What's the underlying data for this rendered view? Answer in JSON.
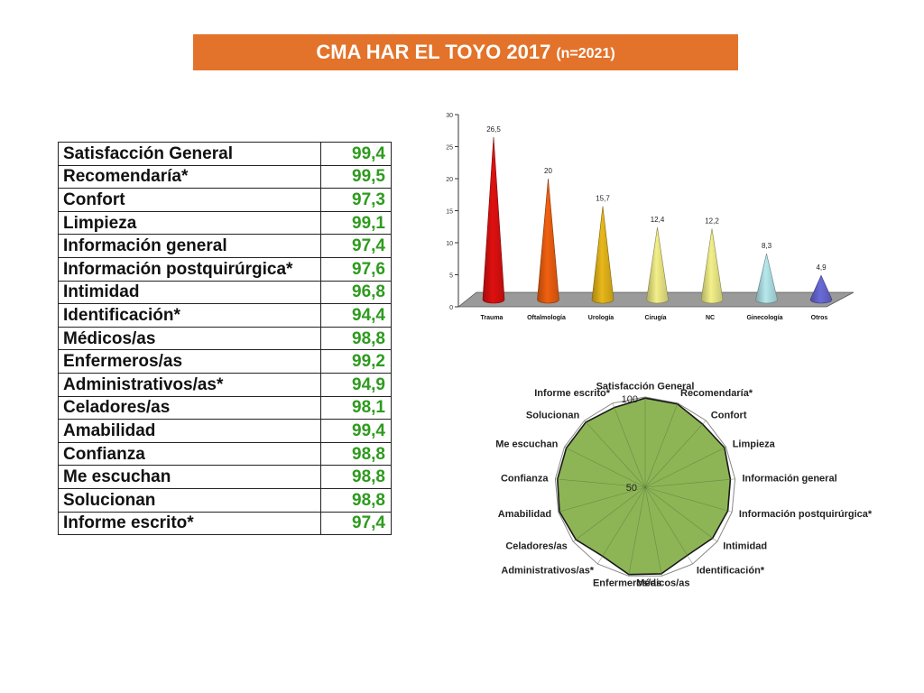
{
  "header": {
    "title": "CMA HAR EL TOYO 2017",
    "subtitle": "(n=2021)"
  },
  "colors": {
    "banner": "#e3732a",
    "value_text": "#2e9b1e",
    "radar_fill": "#8db556"
  },
  "table": {
    "rows": [
      {
        "label": "Satisfacción General",
        "value": "99,4"
      },
      {
        "label": "Recomendaría*",
        "value": "99,5"
      },
      {
        "label": "Confort",
        "value": "97,3"
      },
      {
        "label": "Limpieza",
        "value": "99,1"
      },
      {
        "label": "Información general",
        "value": "97,4"
      },
      {
        "label": "Información postquirúrgica*",
        "value": "97,6"
      },
      {
        "label": "Intimidad",
        "value": "96,8"
      },
      {
        "label": "Identificación*",
        "value": "94,4"
      },
      {
        "label": "Médicos/as",
        "value": "98,8"
      },
      {
        "label": "Enfermeros/as",
        "value": "99,2"
      },
      {
        "label": "Administrativos/as*",
        "value": "94,9"
      },
      {
        "label": "Celadores/as",
        "value": "98,1"
      },
      {
        "label": "Amabilidad",
        "value": "99,4"
      },
      {
        "label": "Confianza",
        "value": "98,8"
      },
      {
        "label": "Me escuchan",
        "value": "98,8"
      },
      {
        "label": "Solucionan",
        "value": "98,8"
      },
      {
        "label": "Informe escrito*",
        "value": "97,4"
      }
    ]
  },
  "chart_data": [
    {
      "type": "bar",
      "style": "3d-cone",
      "categories": [
        "Trauma",
        "Oftalmología",
        "Urología",
        "Cirugía",
        "NC",
        "Ginecología",
        "Otros"
      ],
      "values": [
        26.5,
        20,
        15.7,
        12.4,
        12.2,
        8.3,
        4.9
      ],
      "value_labels": [
        "26,5",
        "20",
        "15,7",
        "12,4",
        "12,2",
        "8,3",
        "4,9"
      ],
      "colors": [
        "#e01010",
        "#f06010",
        "#e8b81a",
        "#f2ee88",
        "#f3f08a",
        "#b5e8ec",
        "#6a6ad8"
      ],
      "ylim": [
        0,
        30
      ],
      "yticks": [
        "0",
        "5",
        "10",
        "15",
        "20",
        "25",
        "30"
      ],
      "grid": false,
      "title": "",
      "xlabel": "",
      "ylabel": ""
    },
    {
      "type": "radar",
      "categories": [
        "Satisfacción General",
        "Recomendaría*",
        "Confort",
        "Limpieza",
        "Información general",
        "Información postquirúrgica*",
        "Intimidad",
        "Identificación*",
        "Médicos/as",
        "Enfermeros/as",
        "Administrativos/as*",
        "Celadores/as",
        "Amabilidad",
        "Confianza",
        "Me escuchan",
        "Solucionan",
        "Informe escrito*"
      ],
      "values": [
        99.4,
        99.5,
        97.3,
        99.1,
        97.4,
        97.6,
        96.8,
        94.4,
        98.8,
        99.2,
        94.9,
        98.1,
        99.4,
        98.8,
        98.8,
        98.8,
        97.4
      ],
      "rlim": [
        50,
        100
      ],
      "ticks": [
        "50",
        "100"
      ]
    }
  ]
}
